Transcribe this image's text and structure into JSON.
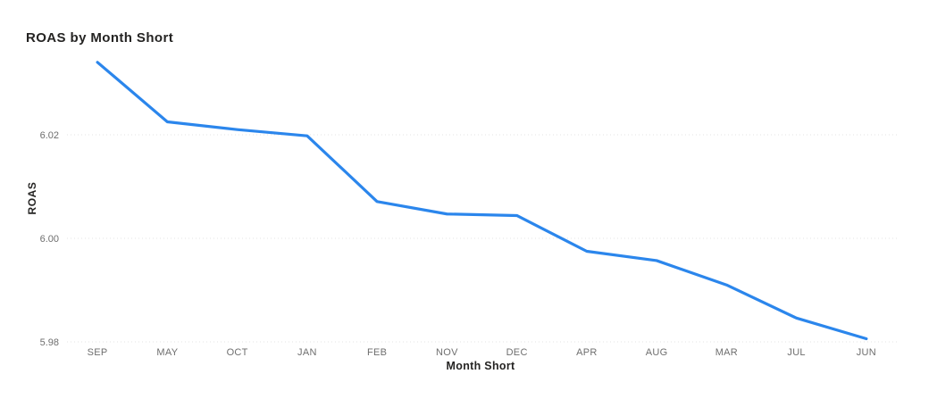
{
  "chart_data": {
    "type": "line",
    "title": "ROAS by Month Short",
    "xlabel": "Month Short",
    "ylabel": "ROAS",
    "categories": [
      "SEP",
      "MAY",
      "OCT",
      "JAN",
      "FEB",
      "NOV",
      "DEC",
      "APR",
      "AUG",
      "MAR",
      "JUL",
      "JUN"
    ],
    "series": [
      {
        "name": "ROAS",
        "values": [
          6.034,
          6.0225,
          6.021,
          6.0198,
          6.0071,
          6.0047,
          6.0044,
          5.9975,
          5.9957,
          5.991,
          5.9846,
          5.9806
        ]
      }
    ],
    "yticks": [
      5.98,
      6.0,
      6.02
    ],
    "ytick_labels": [
      "5.98",
      "6.00",
      "6.02"
    ],
    "ylim": [
      5.98,
      6.036
    ],
    "grid": "horizontal-dotted",
    "legend": "none",
    "colors": {
      "line": "#2B86EC",
      "title": "#252423",
      "axis_title": "#252423",
      "tick_label": "#6E6E6E",
      "gridline": "#E3E3E3",
      "background": "#FFFFFF"
    }
  }
}
